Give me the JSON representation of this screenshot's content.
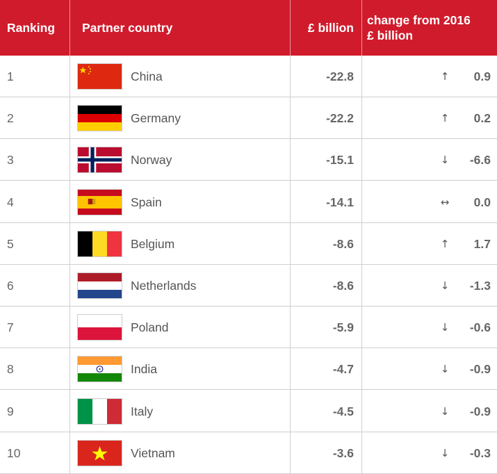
{
  "header": {
    "ranking": "Ranking",
    "partner_country": "Partner country",
    "value": "£ billion",
    "change_line1": "change from 2016",
    "change_line2": "£ billion"
  },
  "colors": {
    "header_bg": "#d01b2c",
    "header_text": "#ffffff",
    "divider": "#cfcfcf"
  },
  "rows": [
    {
      "rank": "1",
      "country": "China",
      "flag": "china-flag-icon",
      "value": "-22.8",
      "arrow": "↑",
      "change": "0.9"
    },
    {
      "rank": "2",
      "country": "Germany",
      "flag": "germany-flag-icon",
      "value": "-22.2",
      "arrow": "↑",
      "change": "0.2"
    },
    {
      "rank": "3",
      "country": "Norway",
      "flag": "norway-flag-icon",
      "value": "-15.1",
      "arrow": "↓",
      "change": "-6.6"
    },
    {
      "rank": "4",
      "country": "Spain",
      "flag": "spain-flag-icon",
      "value": "-14.1",
      "arrow": "↔",
      "change": "0.0"
    },
    {
      "rank": "5",
      "country": "Belgium",
      "flag": "belgium-flag-icon",
      "value": "-8.6",
      "arrow": "↑",
      "change": "1.7"
    },
    {
      "rank": "6",
      "country": "Netherlands",
      "flag": "netherlands-flag-icon",
      "value": "-8.6",
      "arrow": "↓",
      "change": "-1.3"
    },
    {
      "rank": "7",
      "country": "Poland",
      "flag": "poland-flag-icon",
      "value": "-5.9",
      "arrow": "↓",
      "change": "-0.6"
    },
    {
      "rank": "8",
      "country": "India",
      "flag": "india-flag-icon",
      "value": "-4.7",
      "arrow": "↓",
      "change": "-0.9"
    },
    {
      "rank": "9",
      "country": "Italy",
      "flag": "italy-flag-icon",
      "value": "-4.5",
      "arrow": "↓",
      "change": "-0.9"
    },
    {
      "rank": "10",
      "country": "Vietnam",
      "flag": "vietnam-flag-icon",
      "value": "-3.6",
      "arrow": "↓",
      "change": "-0.3"
    }
  ]
}
